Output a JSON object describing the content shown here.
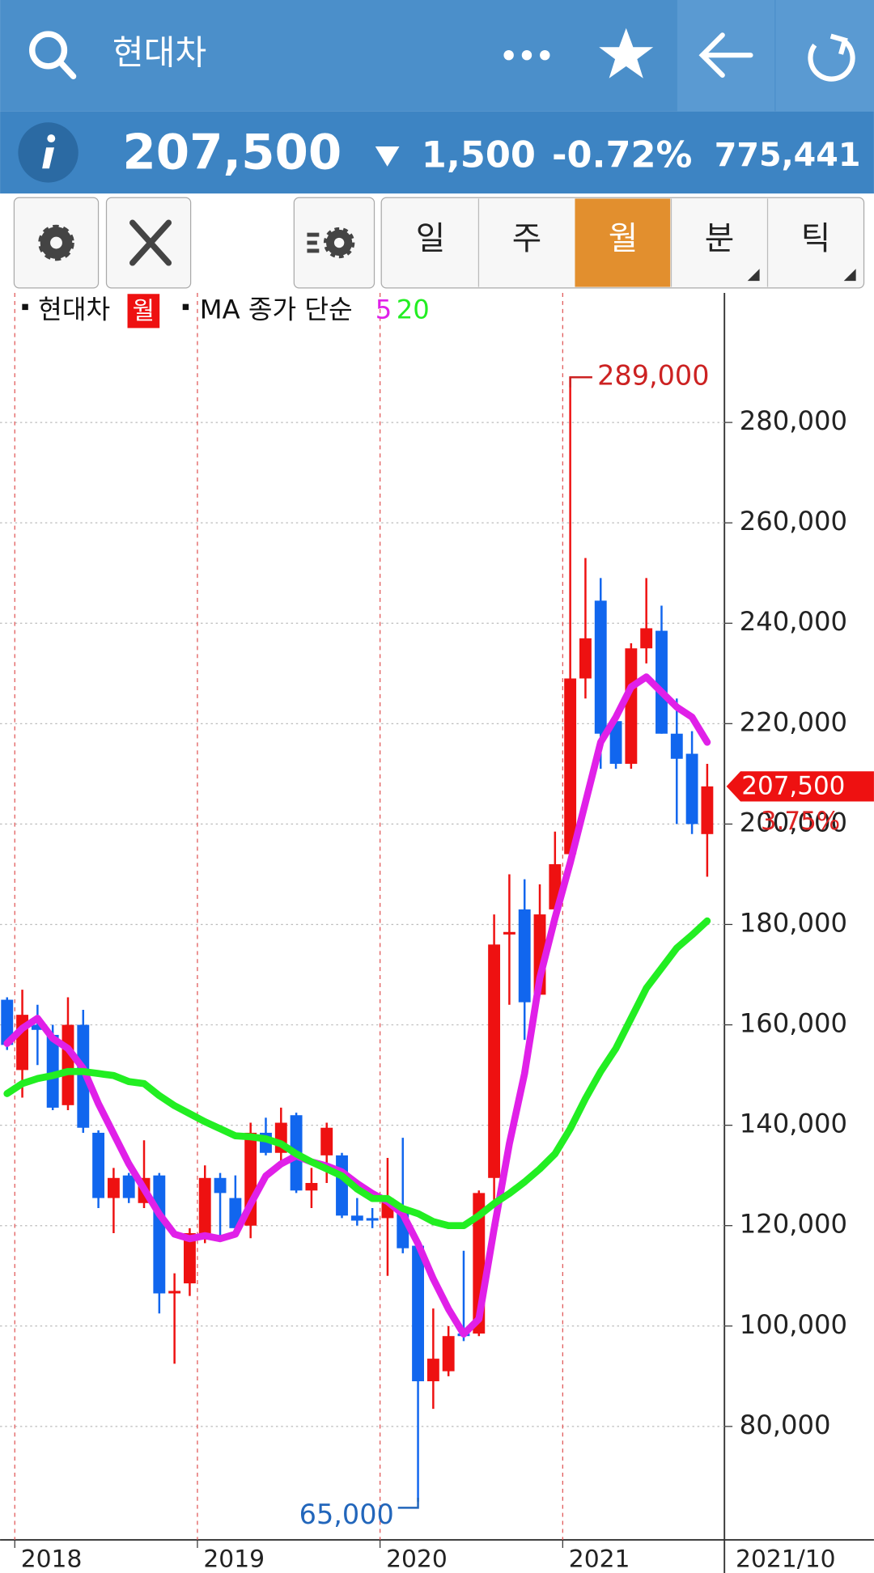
{
  "header": {
    "title": "현대차"
  },
  "quote": {
    "price": "207,500",
    "change": "1,500",
    "change_pct": "-0.72%",
    "volume": "775,441"
  },
  "tabs": [
    "일",
    "주",
    "월",
    "분",
    "틱"
  ],
  "selected_tab": 2,
  "chart_data": {
    "type": "candlestick",
    "legend": {
      "name": "현대차",
      "period": "월",
      "ma_label": "MA 종가 단순"
    },
    "categories": [
      null,
      "2018",
      null,
      null,
      null,
      null,
      null,
      null,
      null,
      null,
      null,
      null,
      null,
      "2019",
      null,
      null,
      null,
      null,
      null,
      null,
      null,
      null,
      null,
      null,
      null,
      "2020",
      null,
      null,
      null,
      null,
      null,
      null,
      null,
      null,
      null,
      null,
      null,
      "2021",
      null,
      null,
      null,
      null,
      null,
      null,
      null,
      null,
      null
    ],
    "x_end_label": "2021/10",
    "up_color": "#ee1111",
    "down_color": "#1166ee",
    "open": [
      165000,
      151000,
      160000,
      158000,
      144000,
      160000,
      138500,
      125500,
      130000,
      124500,
      130000,
      106500,
      108500,
      117500,
      129500,
      125500,
      120000,
      138500,
      134500,
      142000,
      127000,
      134000,
      134000,
      122000,
      121500,
      121500,
      123500,
      116000,
      89000,
      91000,
      98500,
      98500,
      129500,
      178000,
      183000,
      166000,
      183000,
      194000,
      229000,
      244500,
      220500,
      212000,
      235000,
      238500,
      218000,
      214000,
      198000
    ],
    "high": [
      165500,
      167000,
      164000,
      160000,
      165500,
      163000,
      139000,
      131500,
      130500,
      137000,
      130500,
      110500,
      119500,
      132000,
      130500,
      130000,
      140500,
      141500,
      143500,
      142500,
      131500,
      140500,
      134500,
      125500,
      123500,
      133500,
      137500,
      116500,
      103500,
      100000,
      115000,
      127000,
      182000,
      190000,
      189000,
      188000,
      198500,
      289000,
      253000,
      249000,
      221000,
      236000,
      249000,
      243500,
      225000,
      218500,
      212000
    ],
    "low": [
      155000,
      145500,
      152000,
      143000,
      143000,
      138500,
      123500,
      118500,
      124500,
      123500,
      102500,
      92500,
      106000,
      116500,
      118000,
      118000,
      117500,
      134000,
      132500,
      126500,
      123500,
      128500,
      121500,
      120000,
      119500,
      110000,
      114500,
      65000,
      83500,
      90000,
      97000,
      98000,
      124500,
      164000,
      157000,
      166000,
      183000,
      194000,
      225000,
      211000,
      211000,
      211000,
      232000,
      218000,
      200000,
      198000,
      189500
    ],
    "close": [
      156000,
      162000,
      159000,
      143500,
      160000,
      139500,
      125500,
      129500,
      125500,
      129500,
      106500,
      107000,
      118500,
      129500,
      126500,
      119500,
      138500,
      134500,
      140500,
      127000,
      128500,
      139500,
      122000,
      121000,
      121000,
      125500,
      115500,
      89000,
      93500,
      98000,
      98000,
      126500,
      176000,
      178500,
      164500,
      182000,
      192000,
      229000,
      237000,
      218000,
      212000,
      235000,
      239000,
      218000,
      213000,
      200000,
      207500
    ],
    "series": [
      {
        "name": "5",
        "color": "#e020e8",
        "values": [
          156300,
          159300,
          161300,
          157300,
          155300,
          151300,
          144300,
          138300,
          132300,
          127300,
          122300,
          118300,
          117400,
          118000,
          117400,
          118300,
          124300,
          129900,
          132300,
          133900,
          132700,
          131900,
          130700,
          128400,
          126400,
          124800,
          122300,
          116400,
          109400,
          103400,
          98400,
          101400,
          119400,
          136300,
          150300,
          169300,
          181300,
          192300,
          204300,
          216300,
          221300,
          227300,
          229300,
          226300,
          223300,
          221300,
          216300
        ]
      },
      {
        "name": "20",
        "color": "#22ee22",
        "values": [
          146300,
          148300,
          149300,
          149900,
          150700,
          150700,
          150300,
          149900,
          148700,
          148300,
          145900,
          143900,
          142300,
          140700,
          139300,
          137900,
          137700,
          137300,
          136300,
          134300,
          132700,
          131300,
          129900,
          127300,
          125400,
          125400,
          123400,
          122400,
          120800,
          120000,
          120000,
          122000,
          124400,
          126400,
          128700,
          131300,
          134300,
          139300,
          145300,
          150700,
          155300,
          161300,
          167300,
          171300,
          175300,
          177900,
          180700
        ]
      }
    ],
    "high_label": {
      "value": 289000,
      "label": "289,000"
    },
    "low_label": {
      "value": 65000,
      "label": "65,000"
    },
    "last_label": {
      "value": 207500,
      "label": "207,500"
    },
    "last_pct": "3.75%",
    "ylim": [
      57400,
      305800
    ],
    "yticks": [
      {
        "value": 80000,
        "label": "80,000"
      },
      {
        "value": 100000,
        "label": "100,000"
      },
      {
        "value": 120000,
        "label": "120,000"
      },
      {
        "value": 140000,
        "label": "140,000"
      },
      {
        "value": 160000,
        "label": "160,000"
      },
      {
        "value": 180000,
        "label": "180,000"
      },
      {
        "value": 200000,
        "label": "200,000"
      },
      {
        "value": 220000,
        "label": "220,000"
      },
      {
        "value": 240000,
        "label": "240,000"
      },
      {
        "value": 260000,
        "label": "260,000"
      },
      {
        "value": 280000,
        "label": "280,000"
      }
    ],
    "grid": true
  }
}
